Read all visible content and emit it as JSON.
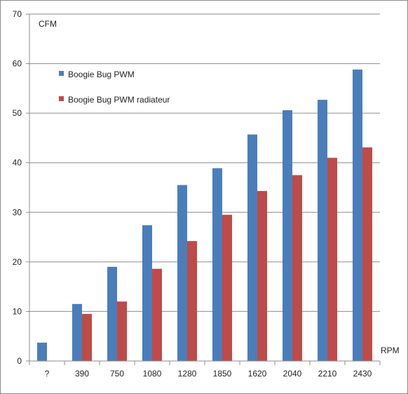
{
  "chart_data": {
    "type": "bar",
    "title": "",
    "ylabel": "CFM",
    "xlabel": "RPM",
    "ylim": [
      0,
      70
    ],
    "yticks": [
      0,
      10,
      20,
      30,
      40,
      50,
      60,
      70
    ],
    "grid": true,
    "legend_position": "top-left",
    "categories": [
      "?",
      "390",
      "750",
      "1080",
      "1280",
      "1850",
      "1620",
      "2040",
      "2210",
      "2430"
    ],
    "series": [
      {
        "name": "Boogie Bug PWM",
        "color": "#4a7ebb",
        "values": [
          3.7,
          11.5,
          19.0,
          27.4,
          35.5,
          38.9,
          45.7,
          50.6,
          52.7,
          58.8
        ]
      },
      {
        "name": "Boogie Bug PWM radiateur",
        "color": "#be4b48",
        "values": [
          null,
          9.5,
          12.0,
          18.6,
          24.2,
          29.5,
          34.3,
          37.5,
          41.0,
          43.1
        ]
      }
    ]
  }
}
